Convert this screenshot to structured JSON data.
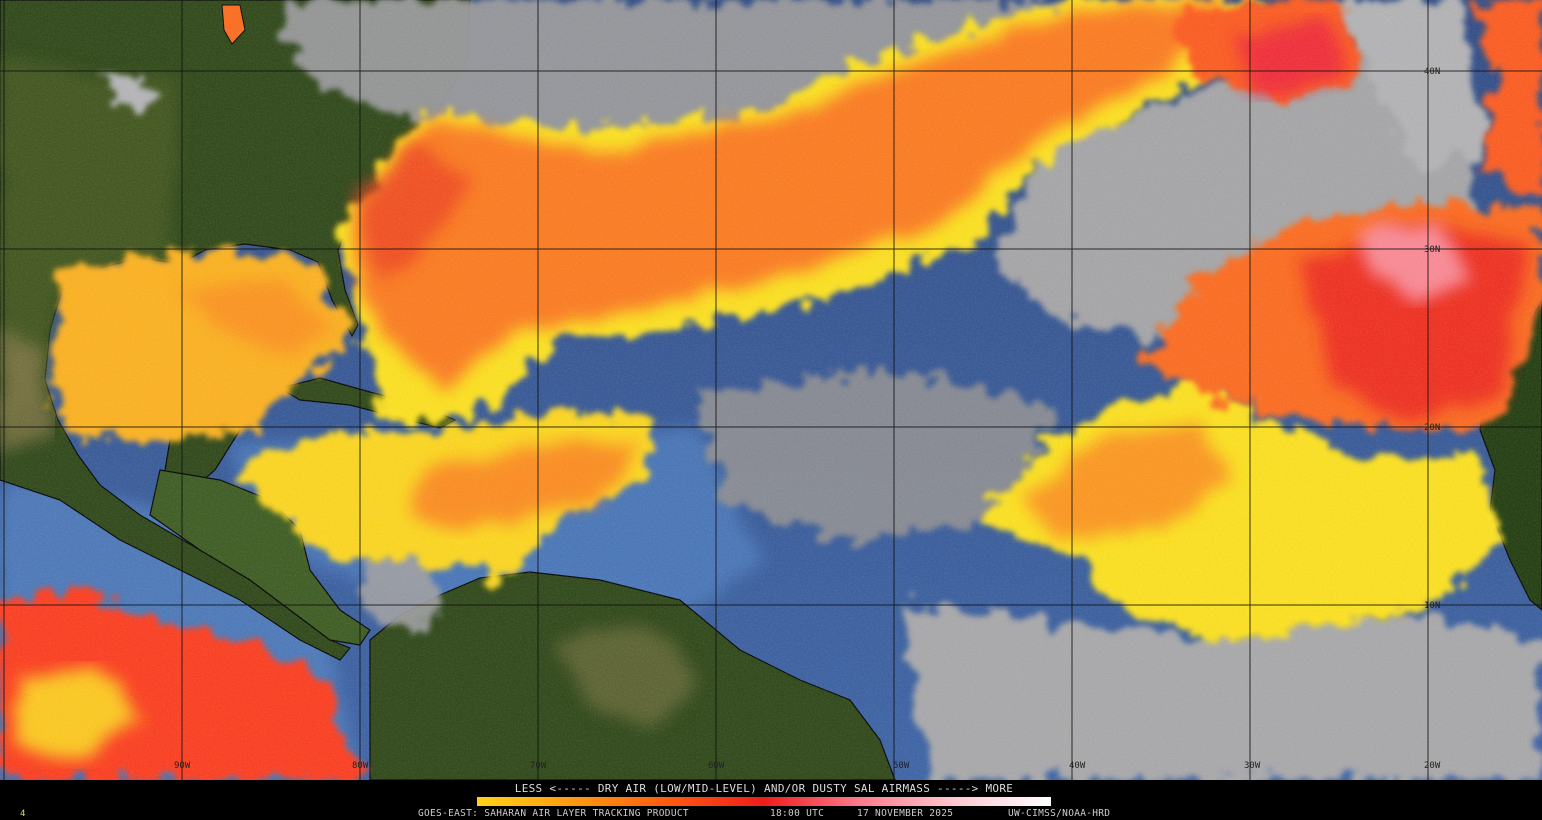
{
  "map": {
    "colors": {
      "ocean_dark": "#2d4a86",
      "ocean_light": "#4c7cc0",
      "land": "#223d10",
      "land_light": "#3d5522",
      "cloud": "#9a9a9a",
      "dry_yellow": "#ffe31a",
      "dry_orange": "#ff7a1a",
      "dry_red": "#f0241c",
      "dry_pink": "#ff9aaa"
    },
    "longitude_labels": [
      "90W",
      "80W",
      "70W",
      "60W",
      "50W",
      "40W",
      "30W",
      "20W"
    ],
    "latitude_labels": [
      "40N",
      "30N",
      "20N",
      "10N"
    ]
  },
  "legend": {
    "title": "LESS <----- DRY AIR (LOW/MID-LEVEL) AND/OR DUSTY SAL AIRMASS -----> MORE",
    "scale_colors": [
      "#ffd21a",
      "#ff9a10",
      "#ff5a10",
      "#ee1c1c",
      "#ff7a8c",
      "#ffc8d0",
      "#ffffff"
    ]
  },
  "footer": {
    "product": "GOES-EAST: SAHARAN AIR LAYER TRACKING PRODUCT",
    "time": "18:00 UTC",
    "date": "17 NOVEMBER 2025",
    "credit": "UW-CIMSS/NOAA-HRD",
    "frame": "4"
  }
}
